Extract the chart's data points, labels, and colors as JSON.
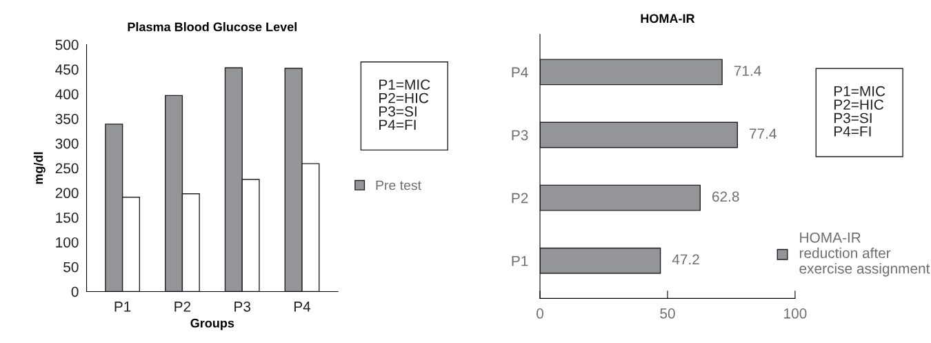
{
  "chart_data": [
    {
      "type": "bar",
      "title": "Plasma Blood Glucose Level",
      "xlabel": "Groups",
      "ylabel": "mg/dl",
      "categories": [
        "P1",
        "P2",
        "P3",
        "P4"
      ],
      "series": [
        {
          "name": "Pre test",
          "color": "#939598",
          "values": [
            339,
            397,
            453,
            452
          ]
        },
        {
          "color": "#ffffff",
          "values": [
            191,
            198,
            227,
            259
          ]
        }
      ],
      "ylim": [
        0,
        500
      ],
      "yticks": [
        0,
        50,
        100,
        150,
        200,
        250,
        300,
        350,
        400,
        450,
        500
      ],
      "grid": false,
      "legend": "right",
      "annotations": [
        "P1=MIC\nP2=HIC\nP3=SI\nP4=FI"
      ]
    },
    {
      "type": "bar",
      "orientation": "horizontal",
      "title": "HOMA-IR",
      "categories": [
        "P4",
        "P3",
        "P2",
        "P1"
      ],
      "series": [
        {
          "name": "HOMA-IR\nreduction after\nexercise assignment",
          "color": "#939598",
          "values": [
            71.4,
            77.4,
            62.8,
            47.2
          ]
        }
      ],
      "xlim": [
        0,
        100
      ],
      "xticks": [
        0,
        50,
        100
      ],
      "grid": false,
      "legend": "right",
      "data_labels": true,
      "annotations": [
        "P1=MIC\nP2=HIC\nP3=SI\nP4=FI"
      ]
    }
  ]
}
